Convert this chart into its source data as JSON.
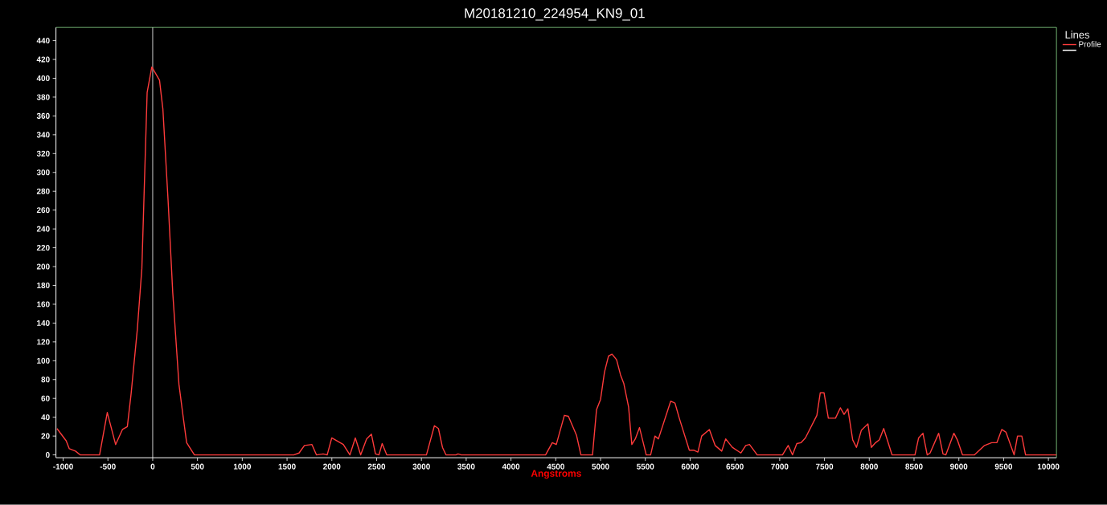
{
  "chart_data": {
    "type": "line",
    "title": "M20181210_224954_KN9_01",
    "xlabel": "Angstroms",
    "legend_title": "Lines",
    "x": [
      -1069,
      -966,
      -931,
      -862,
      -810,
      -593,
      -507,
      -414,
      -338,
      -283,
      -241,
      -172,
      -121,
      -62,
      -10,
      76,
      114,
      172,
      224,
      293,
      338,
      379,
      466,
      1574,
      1634,
      1694,
      1778,
      1828,
      1903,
      1948,
      1999,
      2128,
      2202,
      2262,
      2322,
      2388,
      2442,
      2487,
      2526,
      2562,
      2613,
      3056,
      3145,
      3190,
      3235,
      3274,
      3385,
      3409,
      3445,
      4386,
      4461,
      4506,
      4596,
      4641,
      4731,
      4781,
      4910,
      4955,
      5000,
      5044,
      5089,
      5128,
      5179,
      5223,
      5259,
      5313,
      5349,
      5388,
      5435,
      5510,
      5559,
      5607,
      5646,
      5783,
      5831,
      5879,
      5991,
      6039,
      6087,
      6129,
      6215,
      6279,
      6353,
      6397,
      6471,
      6567,
      6621,
      6663,
      6749,
      7031,
      7095,
      7143,
      7191,
      7239,
      7287,
      7415,
      7453,
      7495,
      7543,
      7623,
      7677,
      7719,
      7761,
      7815,
      7857,
      7911,
      7985,
      8023,
      8071,
      8113,
      8161,
      8254,
      8510,
      8551,
      8599,
      8647,
      8679,
      8775,
      8823,
      8855,
      8945,
      8983,
      9041,
      9175,
      9287,
      9367,
      9425,
      9479,
      9527,
      9617,
      9655,
      9703,
      9745,
      10090
    ],
    "series": [
      {
        "name": "Profile",
        "color": "#ff3b3b",
        "values": [
          28,
          15,
          6.5,
          4,
          0,
          0,
          45,
          11,
          27,
          30,
          65,
          133,
          198,
          385,
          412,
          398,
          367,
          270,
          172,
          75,
          42,
          13,
          0,
          0,
          2,
          10,
          11,
          0,
          1,
          0,
          18,
          11,
          0,
          18,
          0,
          17,
          22,
          1,
          0,
          12,
          0,
          0,
          31,
          28,
          8,
          0,
          0,
          1,
          0,
          0,
          13,
          11,
          42,
          41,
          21,
          0,
          0,
          48,
          59,
          88,
          105,
          107,
          101,
          85,
          76,
          51,
          11,
          17,
          29,
          0,
          0,
          20,
          17,
          57,
          55,
          39,
          5,
          5,
          3,
          20,
          27,
          10,
          4,
          17,
          8,
          2,
          10,
          11,
          0,
          0,
          10,
          0,
          12,
          13,
          18,
          42,
          66,
          66,
          39,
          39,
          50,
          43,
          49,
          16,
          8,
          26,
          33,
          8,
          13,
          16,
          28,
          0,
          0,
          18,
          23,
          0,
          2,
          23,
          1,
          0,
          23,
          16,
          0,
          0,
          10,
          13,
          13,
          27,
          24,
          0,
          20,
          20,
          0,
          0
        ]
      }
    ],
    "xlim": [
      -1080,
      10090
    ],
    "ylim": [
      -3,
      454
    ],
    "xticks": [
      -1000,
      -500,
      0,
      500,
      1000,
      1500,
      2000,
      2500,
      3000,
      3500,
      4000,
      4500,
      5000,
      5500,
      6000,
      6500,
      7000,
      7500,
      8000,
      8500,
      9000,
      9500,
      10000
    ],
    "yticks": [
      0,
      20,
      40,
      60,
      80,
      100,
      120,
      140,
      160,
      180,
      200,
      220,
      240,
      260,
      280,
      300,
      320,
      340,
      360,
      380,
      400,
      420,
      440
    ],
    "ref_lines": [
      {
        "axis": "x",
        "value": 0,
        "color": "#ffffff"
      }
    ],
    "legend": "top right",
    "grid": false,
    "marker": "none",
    "line_style": "solid"
  }
}
